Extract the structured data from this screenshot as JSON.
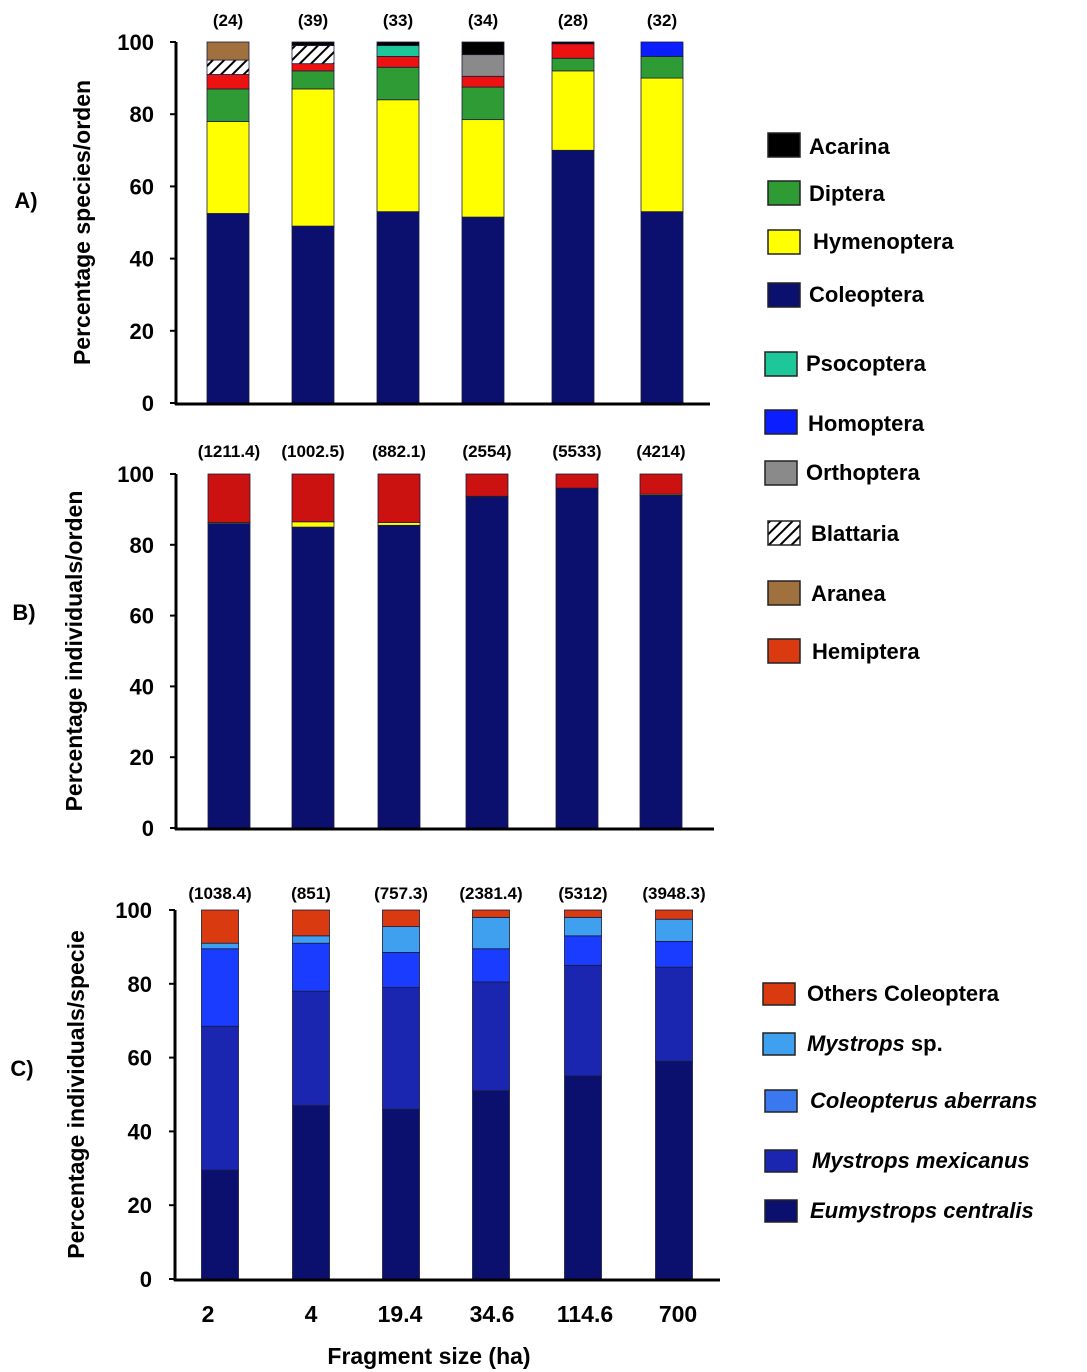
{
  "figure": {
    "xlabel": "Fragment size (ha)",
    "x_ticks": [
      "2",
      "4",
      "19.4",
      "34.6",
      "114.6",
      "700"
    ]
  },
  "legend_order_species": [
    "Acarina",
    "Diptera",
    "Hymenoptera",
    "Coleoptera",
    "Psocoptera",
    "Homoptera",
    "Orthoptera",
    "Blattaria",
    "Aranea",
    "Hemiptera"
  ],
  "legend_species_c": [
    "Others Coleoptera",
    "Mystrops sp.",
    "Coleopterus aberrans",
    "Mystrops mexicanus",
    "Eumystrops centralis"
  ],
  "legend_c_parts": [
    {
      "italic": "",
      "plain": "Others Coleoptera"
    },
    {
      "italic": "Mystrops",
      "plain": " sp."
    },
    {
      "italic": "Coleopterus aberrans",
      "plain": ""
    },
    {
      "italic": "Mystrops mexicanus",
      "plain": ""
    },
    {
      "italic": "Eumystrops centralis",
      "plain": ""
    }
  ],
  "chart_data": [
    {
      "type": "bar",
      "stacked": true,
      "panel_label": "A)",
      "ylabel": "Percentage species/orden",
      "ylim": [
        0,
        100
      ],
      "yticks": [
        0,
        20,
        40,
        60,
        80,
        100
      ],
      "categories": [
        "2",
        "4",
        "19.4",
        "34.6",
        "114.6",
        "700"
      ],
      "bar_top_labels": [
        "(24)",
        "(39)",
        "(33)",
        "(34)",
        "(28)",
        "(32)"
      ],
      "series": [
        {
          "name": "Coleoptera",
          "color": "#0b0f6e",
          "values": [
            52.5,
            49,
            53,
            51.5,
            70,
            53
          ]
        },
        {
          "name": "Hymenoptera",
          "color": "#ffff00",
          "values": [
            25.5,
            38,
            31,
            27,
            22,
            37
          ]
        },
        {
          "name": "Diptera",
          "color": "#2e9b35",
          "values": [
            9,
            5,
            9,
            9,
            3.5,
            6
          ]
        },
        {
          "name": "Hemiptera",
          "color": "#ee1111",
          "values": [
            4,
            2,
            3,
            3,
            4,
            0
          ]
        },
        {
          "name": "Orthoptera",
          "color": "#8a8a8a",
          "values": [
            0,
            0,
            0,
            6,
            0,
            0
          ]
        },
        {
          "name": "Blattaria",
          "color": "hatch",
          "values": [
            4,
            5,
            0,
            0,
            0,
            0
          ]
        },
        {
          "name": "Aranea",
          "color": "#a0703e",
          "values": [
            5,
            0,
            0,
            0,
            0,
            0
          ]
        },
        {
          "name": "Psocoptera",
          "color": "#1ec79a",
          "values": [
            0,
            0,
            3,
            0,
            0,
            0
          ]
        },
        {
          "name": "Homoptera",
          "color": "#0a1eff",
          "values": [
            0,
            0,
            0,
            0,
            0,
            4
          ]
        },
        {
          "name": "Acarina",
          "color": "#000000",
          "values": [
            0,
            1,
            1,
            3.5,
            0.5,
            0
          ]
        }
      ],
      "legend": [
        {
          "name": "Acarina",
          "color": "#000000"
        },
        {
          "name": "Diptera",
          "color": "#2e9b35"
        },
        {
          "name": "Hymenoptera",
          "color": "#ffff00"
        },
        {
          "name": "Coleoptera",
          "color": "#0b0f6e"
        },
        {
          "name": "Psocoptera",
          "color": "#1ec79a"
        },
        {
          "name": "Homoptera",
          "color": "#0a1eff"
        },
        {
          "name": "Orthoptera",
          "color": "#8a8a8a"
        },
        {
          "name": "Blattaria",
          "color": "hatch"
        },
        {
          "name": "Aranea",
          "color": "#a0703e"
        },
        {
          "name": "Hemiptera",
          "color": "#d93a10"
        }
      ]
    },
    {
      "type": "bar",
      "stacked": true,
      "panel_label": "B)",
      "ylabel": "Percentage individuals/orden",
      "ylim": [
        0,
        100
      ],
      "yticks": [
        0,
        20,
        40,
        60,
        80,
        100
      ],
      "categories": [
        "2",
        "4",
        "19.4",
        "34.6",
        "114.6",
        "700"
      ],
      "bar_top_labels": [
        "(1211.4)",
        "(1002.5)",
        "(882.1)",
        "(2554)",
        "(5533)",
        "(4214)"
      ],
      "series": [
        {
          "name": "Coleoptera",
          "color": "#0b0f6e",
          "values": [
            86,
            85,
            85.5,
            93.5,
            96,
            94
          ]
        },
        {
          "name": "Hymenoptera",
          "color": "#ffff00",
          "values": [
            0.3,
            1.5,
            0.8,
            0.2,
            0,
            0.3
          ]
        },
        {
          "name": "Hemiptera",
          "color": "#cc1111",
          "values": [
            13.7,
            13.5,
            13.7,
            6.3,
            4,
            5.7
          ]
        }
      ]
    },
    {
      "type": "bar",
      "stacked": true,
      "panel_label": "C)",
      "ylabel": "Percentage individuals/specie",
      "ylim": [
        0,
        100
      ],
      "yticks": [
        0,
        20,
        40,
        60,
        80,
        100
      ],
      "categories": [
        "2",
        "4",
        "19.4",
        "34.6",
        "114.6",
        "700"
      ],
      "bar_top_labels": [
        "(1038.4)",
        "(851)",
        "(757.3)",
        "(2381.4)",
        "(5312)",
        "(3948.3)"
      ],
      "series": [
        {
          "name": "Eumystrops centralis",
          "color": "#0b0f6e",
          "values": [
            29.5,
            47,
            46,
            51,
            55,
            59
          ]
        },
        {
          "name": "Mystrops mexicanus",
          "color": "#1a25b0",
          "values": [
            39,
            31,
            33,
            29.5,
            30,
            25.5
          ]
        },
        {
          "name": "Coleopterus aberrans",
          "color": "#1a3cff",
          "values": [
            21,
            13,
            9.5,
            9,
            8,
            7
          ]
        },
        {
          "name": "Mystrops sp.",
          "color": "#3fa0f0",
          "values": [
            1.5,
            2,
            7,
            8.5,
            5,
            6
          ]
        },
        {
          "name": "Others Coleoptera",
          "color": "#d93a10",
          "values": [
            9,
            7,
            4.5,
            2,
            2,
            2.5
          ]
        }
      ],
      "legend": [
        {
          "name": "Others Coleoptera",
          "color": "#d93a10"
        },
        {
          "name": "Mystrops sp.",
          "color": "#3fa0f0"
        },
        {
          "name": "Coleopterus aberrans",
          "color": "#3a78f0"
        },
        {
          "name": "Mystrops mexicanus",
          "color": "#1a25b0"
        },
        {
          "name": "Eumystrops centralis",
          "color": "#0b0f6e"
        }
      ]
    }
  ]
}
